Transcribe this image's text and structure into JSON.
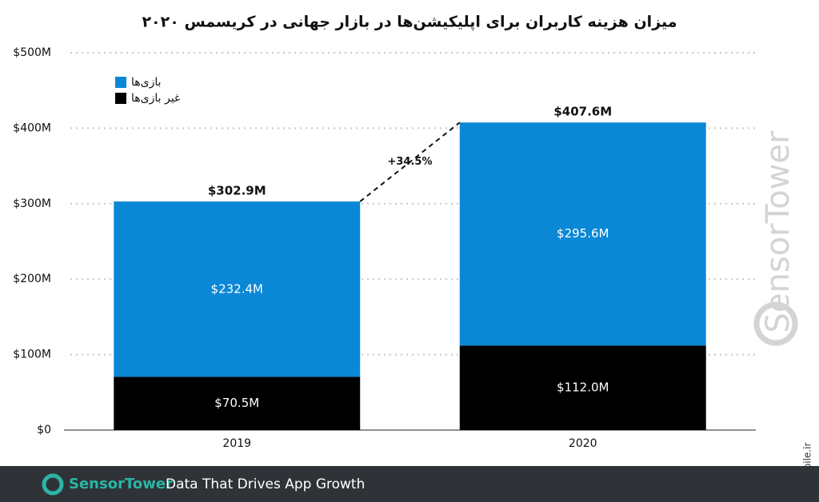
{
  "chart_data": {
    "type": "stacked_bar",
    "title": "میزان هزینه کاربران برای اپلیکیشن‌ها در بازار جهانی در کریسمس ۲۰۲۰",
    "categories": [
      "2019",
      "2020"
    ],
    "series": [
      {
        "name": "بازی‌ها",
        "color": "#0a88d6",
        "values": [
          232.4,
          295.6
        ],
        "value_labels": [
          "$232.4M",
          "$295.6M"
        ]
      },
      {
        "name": "غیر بازی‌ها",
        "color": "#000000",
        "values": [
          70.5,
          112.0
        ],
        "value_labels": [
          "$70.5M",
          "$112.0M"
        ]
      }
    ],
    "totals": {
      "values": [
        302.9,
        407.6
      ],
      "value_labels": [
        "$302.9M",
        "$407.6M"
      ]
    },
    "annotation": "+34.5%",
    "ylim": [
      0,
      500
    ],
    "yticks": [
      {
        "value": 0,
        "label": "$0"
      },
      {
        "value": 100,
        "label": "$100M"
      },
      {
        "value": 200,
        "label": "$200M"
      },
      {
        "value": 300,
        "label": "$300M"
      },
      {
        "value": 400,
        "label": "$400M"
      },
      {
        "value": 500,
        "label": "$500M"
      }
    ],
    "grid": true,
    "legend": "top-left"
  },
  "watermark": "SensorTower",
  "footer": {
    "brand": "SensorTower",
    "tagline": "Data That Drives App Growth"
  },
  "source_mark": "mobile.ir"
}
